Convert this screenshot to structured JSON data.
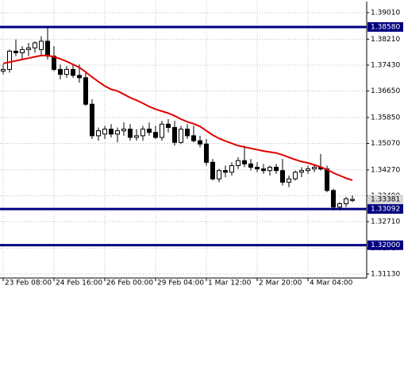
{
  "chart_data": {
    "type": "candlestick",
    "categories": [
      "23 Feb 08:00",
      null,
      null,
      null,
      null,
      null,
      null,
      null,
      "24 Feb 16:00",
      null,
      null,
      null,
      null,
      null,
      null,
      null,
      "26 Feb 00:00",
      null,
      null,
      null,
      null,
      null,
      null,
      null,
      "29 Feb 04:00",
      null,
      null,
      null,
      null,
      null,
      null,
      null,
      "1 Mar 12:00",
      null,
      null,
      null,
      null,
      null,
      null,
      null,
      "2 Mar 20:00",
      null,
      null,
      null,
      null,
      null,
      null,
      null,
      "4 Mar 04:00",
      null,
      null,
      null,
      null,
      null,
      null,
      null
    ],
    "open": [
      1.3725,
      1.373,
      1.3785,
      1.378,
      1.379,
      1.3795,
      1.379,
      1.3815,
      1.377,
      1.373,
      1.3715,
      1.373,
      1.3712,
      1.3705,
      1.3625,
      1.353,
      1.3535,
      1.355,
      1.3535,
      1.3545,
      1.355,
      1.3525,
      1.353,
      1.355,
      1.354,
      1.3525,
      1.3565,
      1.3555,
      1.351,
      1.355,
      1.353,
      1.3515,
      1.3505,
      1.345,
      1.34,
      1.3425,
      1.342,
      1.344,
      1.3455,
      1.3445,
      1.3435,
      1.343,
      1.3425,
      1.3435,
      1.3425,
      1.339,
      1.34,
      1.342,
      1.3425,
      1.343,
      1.3435,
      1.343,
      1.3365,
      1.3315,
      1.3325,
      1.3335
    ],
    "high": [
      1.3745,
      1.379,
      1.382,
      1.38,
      1.381,
      1.3815,
      1.383,
      1.386,
      1.38,
      1.3745,
      1.374,
      1.3745,
      1.3745,
      1.372,
      1.364,
      1.3555,
      1.356,
      1.3565,
      1.3555,
      1.357,
      1.3565,
      1.355,
      1.356,
      1.357,
      1.356,
      1.3575,
      1.358,
      1.3575,
      1.356,
      1.3565,
      1.356,
      1.353,
      1.352,
      1.346,
      1.343,
      1.344,
      1.345,
      1.3465,
      1.35,
      1.346,
      1.345,
      1.3445,
      1.344,
      1.3445,
      1.346,
      1.341,
      1.3425,
      1.3435,
      1.344,
      1.3445,
      1.3475,
      1.344,
      1.337,
      1.333,
      1.3345,
      1.335
    ],
    "low": [
      1.3715,
      1.372,
      1.377,
      1.376,
      1.377,
      1.378,
      1.377,
      1.376,
      1.3725,
      1.37,
      1.3705,
      1.3705,
      1.369,
      1.362,
      1.352,
      1.3515,
      1.352,
      1.3525,
      1.351,
      1.353,
      1.3515,
      1.3515,
      1.3515,
      1.353,
      1.352,
      1.3515,
      1.354,
      1.35,
      1.3505,
      1.352,
      1.351,
      1.3495,
      1.344,
      1.3395,
      1.339,
      1.3405,
      1.341,
      1.343,
      1.3435,
      1.3425,
      1.342,
      1.3415,
      1.341,
      1.3415,
      1.338,
      1.3375,
      1.3395,
      1.3405,
      1.3415,
      1.342,
      1.3425,
      1.336,
      1.3305,
      1.3305,
      1.3315,
      1.333
    ],
    "close": [
      1.373,
      1.3785,
      1.378,
      1.379,
      1.3795,
      1.381,
      1.3815,
      1.377,
      1.373,
      1.3715,
      1.373,
      1.3712,
      1.3705,
      1.3625,
      1.353,
      1.3545,
      1.355,
      1.3535,
      1.3545,
      1.355,
      1.3525,
      1.353,
      1.355,
      1.354,
      1.3525,
      1.3565,
      1.3555,
      1.351,
      1.355,
      1.353,
      1.3515,
      1.3505,
      1.345,
      1.34,
      1.3425,
      1.342,
      1.344,
      1.3455,
      1.3445,
      1.3435,
      1.343,
      1.3425,
      1.3435,
      1.3425,
      1.339,
      1.34,
      1.342,
      1.3425,
      1.343,
      1.3435,
      1.343,
      1.3365,
      1.3315,
      1.3325,
      1.334,
      1.33381
    ],
    "ma": {
      "color": "#e00000",
      "values": [
        1.3748,
        1.3752,
        1.3756,
        1.376,
        1.3764,
        1.3768,
        1.3772,
        1.3772,
        1.3768,
        1.3762,
        1.3754,
        1.3745,
        1.3736,
        1.3722,
        1.3707,
        1.3693,
        1.368,
        1.367,
        1.3665,
        1.3655,
        1.3645,
        1.3637,
        1.3628,
        1.3618,
        1.361,
        1.3604,
        1.3598,
        1.359,
        1.358,
        1.3572,
        1.3566,
        1.3558,
        1.3545,
        1.3532,
        1.3522,
        1.3514,
        1.3507,
        1.35,
        1.3496,
        1.3492,
        1.3488,
        1.3484,
        1.3481,
        1.3478,
        1.3472,
        1.3465,
        1.3458,
        1.3452,
        1.3448,
        1.3442,
        1.3436,
        1.3428,
        1.3418,
        1.341,
        1.3402,
        1.3396
      ]
    },
    "levels": [
      {
        "value": 1.3858,
        "label": "1.38580"
      },
      {
        "value": 1.33092,
        "label": "1.33092"
      },
      {
        "value": 1.32,
        "label": "1.32000"
      }
    ],
    "level_color": "#000080",
    "last_price": {
      "value": 1.33381,
      "label": "1.33381"
    },
    "ylim": [
      1.3101,
      1.39345
    ],
    "yticks": [
      {
        "value": 1.3901,
        "label": "1.39010"
      },
      {
        "value": 1.3821,
        "label": "1.38210"
      },
      {
        "value": 1.3743,
        "label": "1.37430"
      },
      {
        "value": 1.3665,
        "label": "1.36650"
      },
      {
        "value": 1.3585,
        "label": "1.35850"
      },
      {
        "value": 1.3507,
        "label": "1.35070"
      },
      {
        "value": 1.3427,
        "label": "1.34270"
      },
      {
        "value": 1.3349,
        "label": "1.33490"
      },
      {
        "value": 1.3271,
        "label": "1.32710"
      },
      {
        "value": 1.3191,
        "label": "1.31910"
      },
      {
        "value": 1.3113,
        "label": "1.31130"
      }
    ],
    "grid": true
  }
}
